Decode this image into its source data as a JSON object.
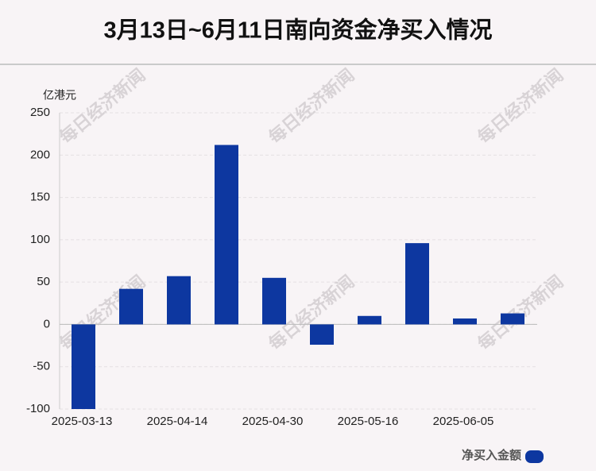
{
  "chart_data": {
    "type": "bar",
    "title": "3月13日~6月11日南向资金净买入情况",
    "y_unit": "亿港元",
    "watermark": "每日经济新闻",
    "categories": [
      "2025-03-13",
      null,
      "2025-04-14",
      null,
      "2025-04-30",
      null,
      "2025-05-16",
      null,
      "2025-06-05",
      null
    ],
    "series": [
      {
        "name": "净买入金额",
        "color": "#0d37a0",
        "values": [
          -100,
          42,
          57,
          212,
          55,
          -24,
          10,
          96,
          7,
          13
        ]
      }
    ],
    "ylim": [
      -100,
      250
    ],
    "yticks": [
      -100,
      -50,
      0,
      50,
      100,
      150,
      200,
      250
    ],
    "grid": true,
    "legend": "bottom-right"
  }
}
